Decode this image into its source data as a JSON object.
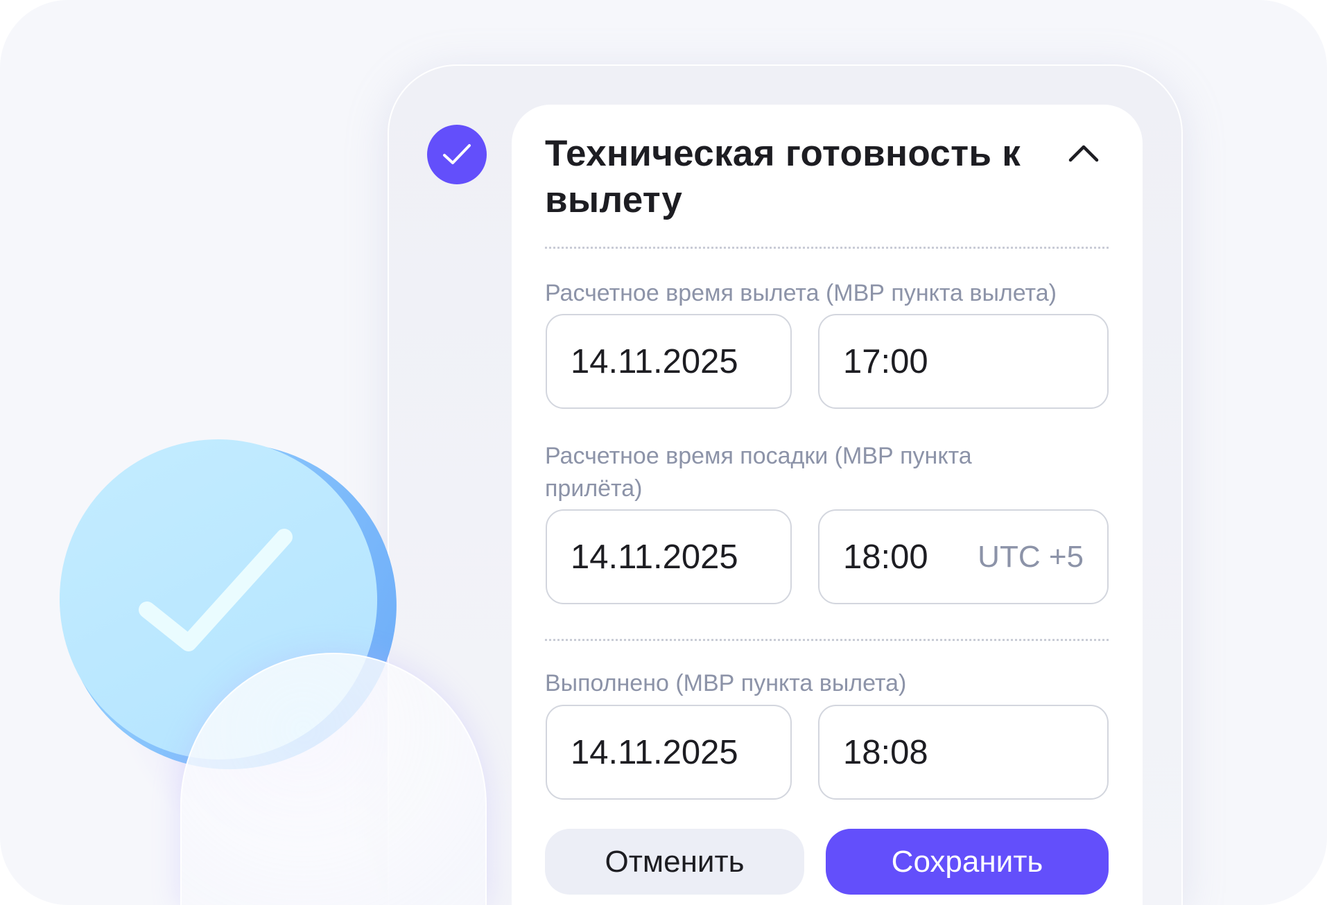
{
  "accent_color": "#634ffb",
  "section": {
    "status_icon": "check-circle-icon",
    "title": "Техническая готовность к вылету",
    "collapse_icon": "chevron-up-icon"
  },
  "fields": [
    {
      "label": "Расчетное время вылета (МВР пункта вылета)",
      "date": "14.11.2025",
      "time": "17:00"
    },
    {
      "label": "Расчетное время посадки (МВР пункта прилёта)",
      "date": "14.11.2025",
      "time": "18:00",
      "timezone": "UTC +5"
    },
    {
      "label": "Выполнено (МВР пункта вылета)",
      "date": "14.11.2025",
      "time": "18:08"
    }
  ],
  "buttons": {
    "cancel": "Отменить",
    "save": "Сохранить"
  }
}
